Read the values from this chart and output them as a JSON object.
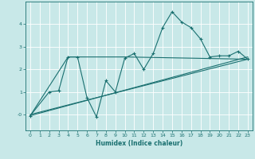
{
  "xlabel": "Humidex (Indice chaleur)",
  "ylabel": "",
  "bg_color": "#c8e8e8",
  "grid_color": "#ffffff",
  "line_color": "#1a7070",
  "xlim": [
    -0.5,
    23.5
  ],
  "ylim": [
    -0.7,
    5.0
  ],
  "xticks": [
    0,
    1,
    2,
    3,
    4,
    5,
    6,
    7,
    8,
    9,
    10,
    11,
    12,
    13,
    14,
    15,
    16,
    17,
    18,
    19,
    20,
    21,
    22,
    23
  ],
  "yticks": [
    0,
    1,
    2,
    3,
    4
  ],
  "ytick_labels": [
    "-0",
    "1",
    "2",
    "3",
    "4"
  ],
  "series1_x": [
    0,
    2,
    3,
    4,
    5,
    6,
    7,
    8,
    9,
    10,
    11,
    12,
    13,
    14,
    15,
    16,
    17,
    18,
    19,
    20,
    21,
    22,
    23
  ],
  "series1_y": [
    -0.05,
    1.0,
    1.05,
    2.55,
    2.55,
    0.75,
    -0.1,
    1.5,
    1.0,
    2.5,
    2.7,
    2.0,
    2.7,
    3.85,
    4.55,
    4.1,
    3.85,
    3.35,
    2.55,
    2.6,
    2.6,
    2.8,
    2.45
  ],
  "series2_x": [
    0,
    23
  ],
  "series2_y": [
    -0.05,
    2.55
  ],
  "series3_x": [
    0,
    4,
    10,
    23
  ],
  "series3_y": [
    -0.05,
    2.55,
    2.55,
    2.45
  ],
  "series4_x": [
    0,
    23
  ],
  "series4_y": [
    0.0,
    2.45
  ]
}
